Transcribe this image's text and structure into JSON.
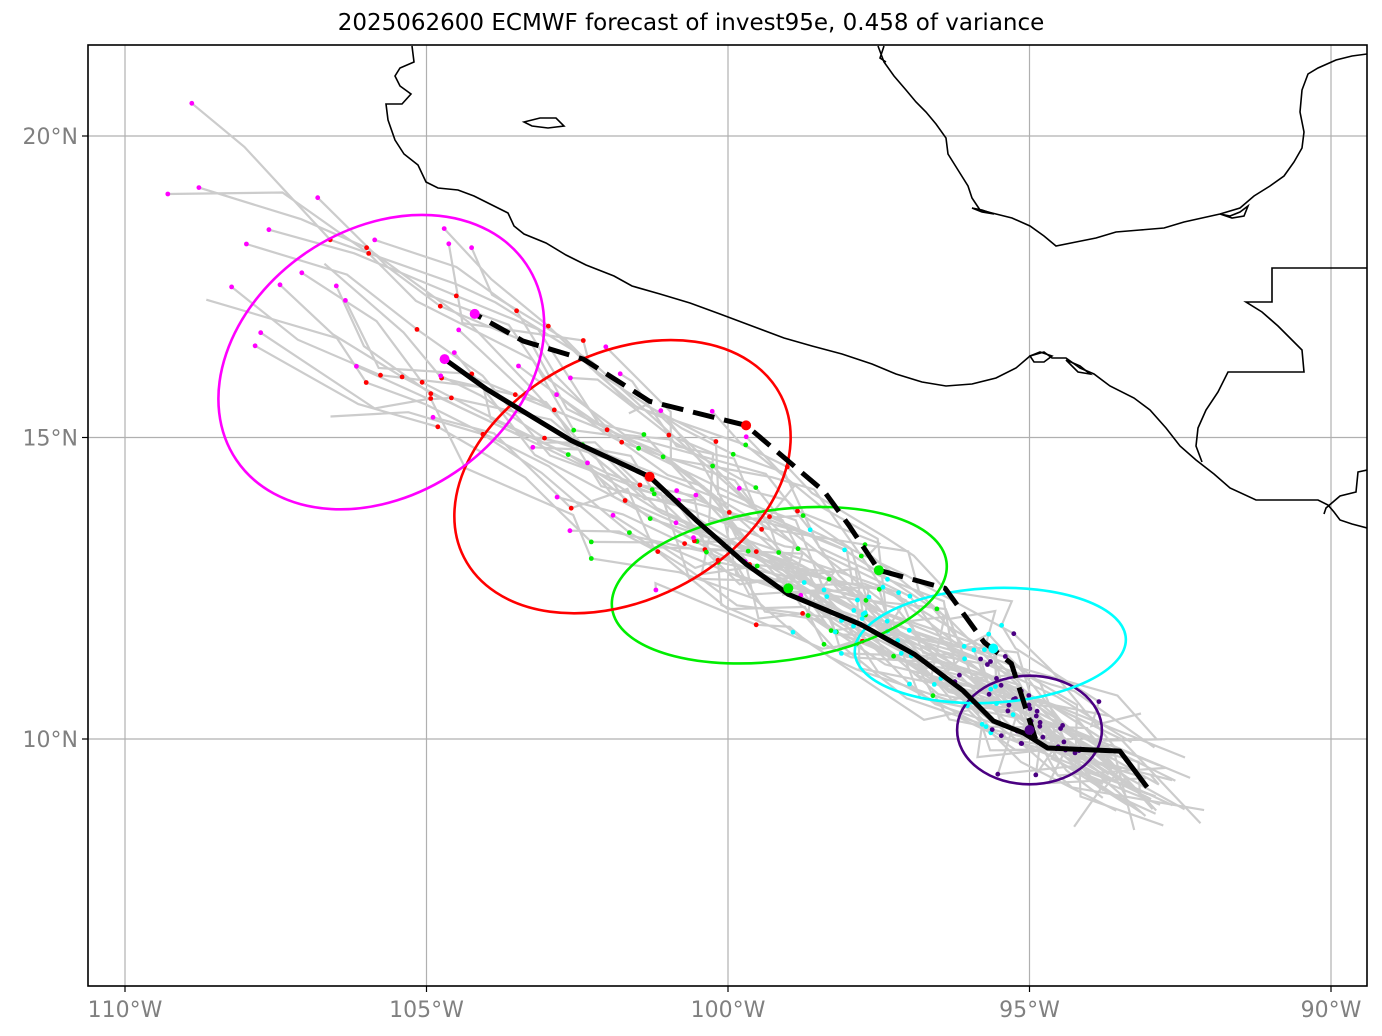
{
  "title": "2025062600 ECMWF forecast of invest95e, 0.458 of variance",
  "map": {
    "lon_range": [
      -110.6,
      -89.4
    ],
    "lat_range": [
      6.2,
      21.5
    ],
    "grid": true,
    "lon_ticks": [
      {
        "value": -110,
        "label": "110°W"
      },
      {
        "value": -105,
        "label": "105°W"
      },
      {
        "value": -100,
        "label": "100°W"
      },
      {
        "value": -95,
        "label": "95°W"
      },
      {
        "value": -90,
        "label": "90°W"
      }
    ],
    "lat_ticks": [
      {
        "value": 10,
        "label": "10°N"
      },
      {
        "value": 15,
        "label": "15°N"
      },
      {
        "value": 20,
        "label": "20°N"
      }
    ]
  },
  "colors": {
    "coast": "#000000",
    "ensemble": "#cccccc",
    "grid": "#b0b0b0",
    "mean_track": "#000000",
    "clusters": [
      "#4b0082",
      "#00ffff",
      "#00ee00",
      "#ff0000",
      "#ff00ff"
    ]
  },
  "chart_data": {
    "type": "map",
    "mean_track": [
      [
        -93.05,
        9.2
      ],
      [
        -93.5,
        9.8
      ],
      [
        -94.7,
        9.85
      ],
      [
        -95.1,
        10.1
      ],
      [
        -95.6,
        10.3
      ],
      [
        -96.1,
        10.8
      ],
      [
        -96.9,
        11.4
      ],
      [
        -97.8,
        11.9
      ],
      [
        -99.0,
        12.4
      ],
      [
        -99.7,
        12.9
      ],
      [
        -100.5,
        13.6
      ],
      [
        -101.3,
        14.35
      ],
      [
        -102.6,
        14.95
      ],
      [
        -104.0,
        15.8
      ],
      [
        -104.7,
        16.3
      ]
    ],
    "alt_track": [
      [
        -94.9,
        10.0
      ],
      [
        -95.3,
        11.25
      ],
      [
        -95.75,
        11.6
      ],
      [
        -96.4,
        12.5
      ],
      [
        -97.5,
        12.8
      ],
      [
        -98.0,
        13.55
      ],
      [
        -98.4,
        14.1
      ],
      [
        -99.7,
        15.2
      ],
      [
        -101.3,
        15.6
      ],
      [
        -102.4,
        16.3
      ],
      [
        -103.4,
        16.6
      ],
      [
        -104.2,
        17.05
      ]
    ],
    "clusters": [
      {
        "center": [
          -95.0,
          10.15
        ],
        "semi_axes_deg": [
          1.2,
          0.9
        ],
        "angle_deg": 0
      },
      {
        "center": [
          -95.65,
          11.55
        ],
        "semi_axes_deg": [
          2.25,
          0.95
        ],
        "angle_deg": -3
      },
      {
        "center": [
          -99.15,
          12.55
        ],
        "semi_axes_deg": [
          2.8,
          1.25
        ],
        "angle_deg": -8
      },
      {
        "center": [
          -101.75,
          14.35
        ],
        "semi_axes_deg": [
          2.95,
          2.05
        ],
        "angle_deg": -27
      },
      {
        "center": [
          -105.75,
          16.25
        ],
        "semi_axes_deg": [
          2.9,
          2.2
        ],
        "angle_deg": -34
      }
    ],
    "cluster_centers_marked": [
      [
        -95.0,
        10.15
      ],
      [
        -95.6,
        11.5
      ],
      [
        -99.0,
        12.5
      ],
      [
        -101.3,
        14.35
      ],
      [
        -104.7,
        16.3
      ],
      [
        -97.5,
        12.8
      ],
      [
        -99.7,
        15.2
      ],
      [
        -104.2,
        17.05
      ]
    ]
  }
}
